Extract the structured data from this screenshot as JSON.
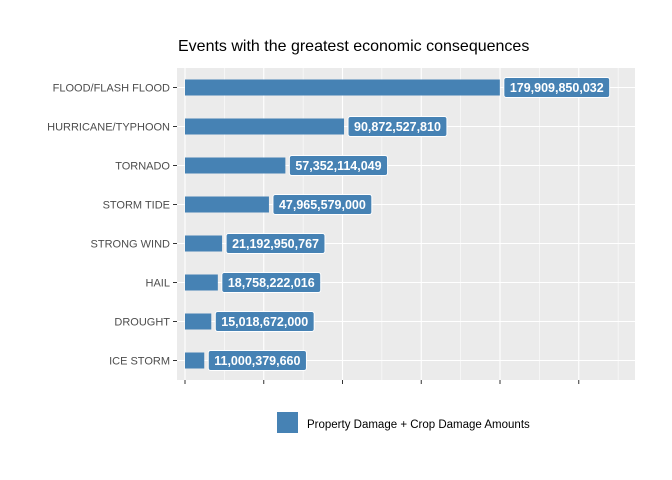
{
  "chart_data": {
    "type": "bar",
    "orientation": "horizontal",
    "title": "Events with the greatest economic consequences",
    "xlabel": "",
    "ylabel": "",
    "categories": [
      "FLOOD/FLASH FLOOD",
      "HURRICANE/TYPHOON",
      "TORNADO",
      "STORM TIDE",
      "STRONG WIND",
      "HAIL",
      "DROUGHT",
      "ICE STORM"
    ],
    "series": [
      {
        "name": "Property Damage + Crop Damage Amounts",
        "values": [
          179909850032,
          90872527810,
          57352114049,
          47965579000,
          21192950767,
          18758222016,
          15018672000,
          11000379660
        ]
      }
    ],
    "data_labels": [
      "179,909,850,032",
      "90,872,527,810",
      "57,352,114,049",
      "47,965,579,000",
      "21,192,950,767",
      "18,758,222,016",
      "15,018,672,000",
      "11,000,379,660"
    ],
    "xlim": [
      0,
      252000000000
    ],
    "grid": true,
    "x_tick_labels_visible": false,
    "legend_position": "bottom",
    "colors": {
      "bar": "#4682b4",
      "panel": "#ebebeb",
      "grid": "#ffffff"
    }
  }
}
